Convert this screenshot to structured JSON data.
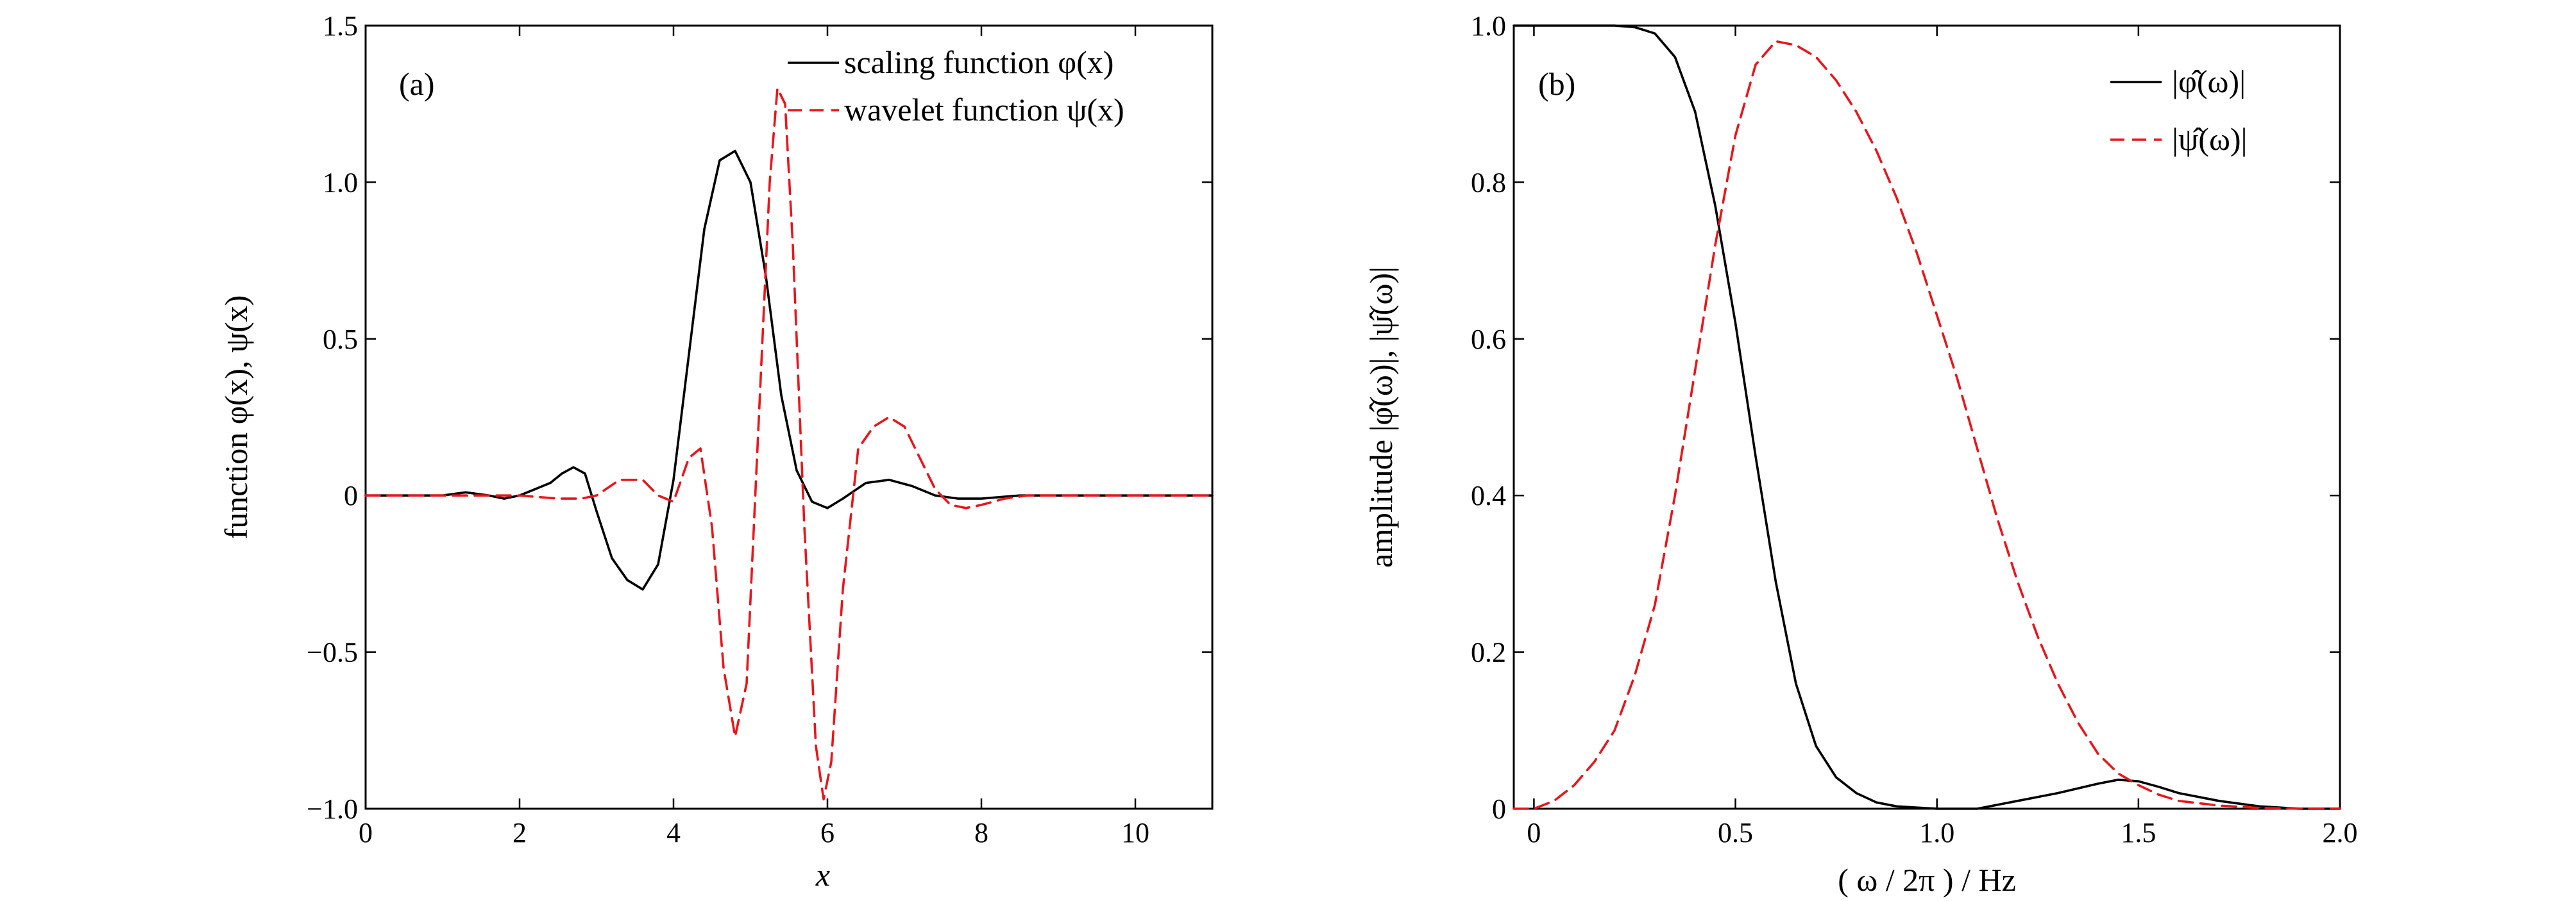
{
  "colors": {
    "scaling": "#000000",
    "wavelet": "#e8161b"
  },
  "chart_data": [
    {
      "type": "line",
      "panel_label": "(a)",
      "xlabel": "x",
      "ylabel": "function φ(x), ψ(x)",
      "xlim": [
        0,
        11
      ],
      "ylim": [
        -1.0,
        1.5
      ],
      "xticks": [
        0,
        2,
        4,
        6,
        8,
        10
      ],
      "xtick_labels": [
        "0",
        "2",
        "4",
        "6",
        "8",
        "10"
      ],
      "yticks": [
        -1.0,
        -0.5,
        0,
        0.5,
        1.0,
        1.5
      ],
      "ytick_labels": [
        "−1.0",
        "−0.5",
        "0",
        "0.5",
        "1.0",
        "1.5"
      ],
      "grid": false,
      "legend_position": "top-right",
      "series": [
        {
          "name": "scaling function φ(x)",
          "style": "solid",
          "color": "#000000",
          "x": [
            0,
            1,
            1.3,
            1.6,
            1.8,
            2.0,
            2.2,
            2.4,
            2.55,
            2.7,
            2.85,
            3.0,
            3.2,
            3.4,
            3.6,
            3.8,
            4.0,
            4.2,
            4.4,
            4.6,
            4.8,
            5.0,
            5.2,
            5.4,
            5.6,
            5.8,
            6.0,
            6.2,
            6.5,
            6.8,
            7.1,
            7.4,
            7.7,
            8.0,
            8.5,
            9,
            10,
            11
          ],
          "y": [
            0,
            0,
            0.01,
            0.0,
            -0.01,
            0.0,
            0.02,
            0.04,
            0.07,
            0.09,
            0.07,
            -0.05,
            -0.2,
            -0.27,
            -0.3,
            -0.22,
            0.05,
            0.45,
            0.85,
            1.07,
            1.1,
            1.0,
            0.7,
            0.32,
            0.08,
            -0.02,
            -0.04,
            -0.01,
            0.04,
            0.05,
            0.03,
            0.0,
            -0.01,
            -0.01,
            0.0,
            0,
            0,
            0
          ]
        },
        {
          "name": "wavelet function ψ(x)",
          "style": "dashed",
          "color": "#e8161b",
          "x": [
            0,
            1,
            2.0,
            2.5,
            2.8,
            3.0,
            3.3,
            3.6,
            3.8,
            4.0,
            4.2,
            4.35,
            4.5,
            4.65,
            4.8,
            4.95,
            5.1,
            5.25,
            5.35,
            5.45,
            5.55,
            5.7,
            5.85,
            5.95,
            6.05,
            6.2,
            6.4,
            6.6,
            6.8,
            7.0,
            7.2,
            7.4,
            7.6,
            7.8,
            8.0,
            8.3,
            8.6,
            9,
            10,
            11
          ],
          "y": [
            0,
            0,
            0.0,
            -0.01,
            -0.01,
            0.0,
            0.05,
            0.05,
            0.0,
            -0.02,
            0.12,
            0.15,
            -0.1,
            -0.55,
            -0.77,
            -0.6,
            0.2,
            1.0,
            1.3,
            1.25,
            0.8,
            -0.1,
            -0.8,
            -0.97,
            -0.85,
            -0.3,
            0.15,
            0.22,
            0.25,
            0.22,
            0.12,
            0.02,
            -0.03,
            -0.04,
            -0.03,
            -0.01,
            0.0,
            0,
            0,
            0
          ]
        }
      ]
    },
    {
      "type": "line",
      "panel_label": "(b)",
      "xlabel": "( ω / 2π ) / Hz",
      "ylabel": "amplitude |φ̂(ω)|, |ψ̂(ω)|",
      "xlim": [
        -0.05,
        2.0
      ],
      "ylim": [
        0,
        1.0
      ],
      "xticks": [
        0,
        0.5,
        1.0,
        1.5,
        2.0
      ],
      "xtick_labels": [
        "0",
        "0.5",
        "1.0",
        "1.5",
        "2.0"
      ],
      "yticks": [
        0,
        0.2,
        0.4,
        0.6,
        0.8,
        1.0
      ],
      "ytick_labels": [
        "0",
        "0.2",
        "0.4",
        "0.6",
        "0.8",
        "1.0"
      ],
      "grid": false,
      "legend_position": "top-right",
      "series": [
        {
          "name": "|φ̂(ω)|",
          "style": "solid",
          "color": "#000000",
          "x": [
            -0.05,
            0.0,
            0.1,
            0.2,
            0.25,
            0.3,
            0.35,
            0.4,
            0.45,
            0.5,
            0.55,
            0.6,
            0.65,
            0.7,
            0.75,
            0.8,
            0.85,
            0.9,
            1.0,
            1.1,
            1.2,
            1.3,
            1.4,
            1.45,
            1.5,
            1.55,
            1.6,
            1.7,
            1.8,
            1.9,
            2.0
          ],
          "y": [
            1.0,
            1.0,
            1.0,
            1.0,
            0.998,
            0.99,
            0.96,
            0.89,
            0.77,
            0.62,
            0.45,
            0.29,
            0.16,
            0.08,
            0.04,
            0.02,
            0.008,
            0.003,
            0.0,
            0.0,
            0.01,
            0.02,
            0.032,
            0.037,
            0.035,
            0.028,
            0.02,
            0.01,
            0.003,
            0.0,
            0.0
          ]
        },
        {
          "name": "|ψ̂(ω)|",
          "style": "dashed",
          "color": "#e8161b",
          "x": [
            -0.05,
            0.0,
            0.05,
            0.1,
            0.15,
            0.2,
            0.25,
            0.3,
            0.35,
            0.4,
            0.45,
            0.5,
            0.55,
            0.6,
            0.65,
            0.7,
            0.75,
            0.8,
            0.85,
            0.9,
            0.95,
            1.0,
            1.05,
            1.1,
            1.15,
            1.2,
            1.25,
            1.3,
            1.35,
            1.4,
            1.45,
            1.5,
            1.55,
            1.6,
            1.7,
            1.8,
            1.9,
            2.0
          ],
          "y": [
            0.0,
            0.0,
            0.01,
            0.03,
            0.06,
            0.1,
            0.17,
            0.26,
            0.4,
            0.56,
            0.72,
            0.86,
            0.95,
            0.98,
            0.975,
            0.96,
            0.93,
            0.89,
            0.84,
            0.78,
            0.71,
            0.63,
            0.55,
            0.46,
            0.37,
            0.29,
            0.22,
            0.16,
            0.11,
            0.07,
            0.045,
            0.03,
            0.018,
            0.01,
            0.004,
            0.001,
            0.0,
            0.0
          ]
        }
      ]
    }
  ]
}
